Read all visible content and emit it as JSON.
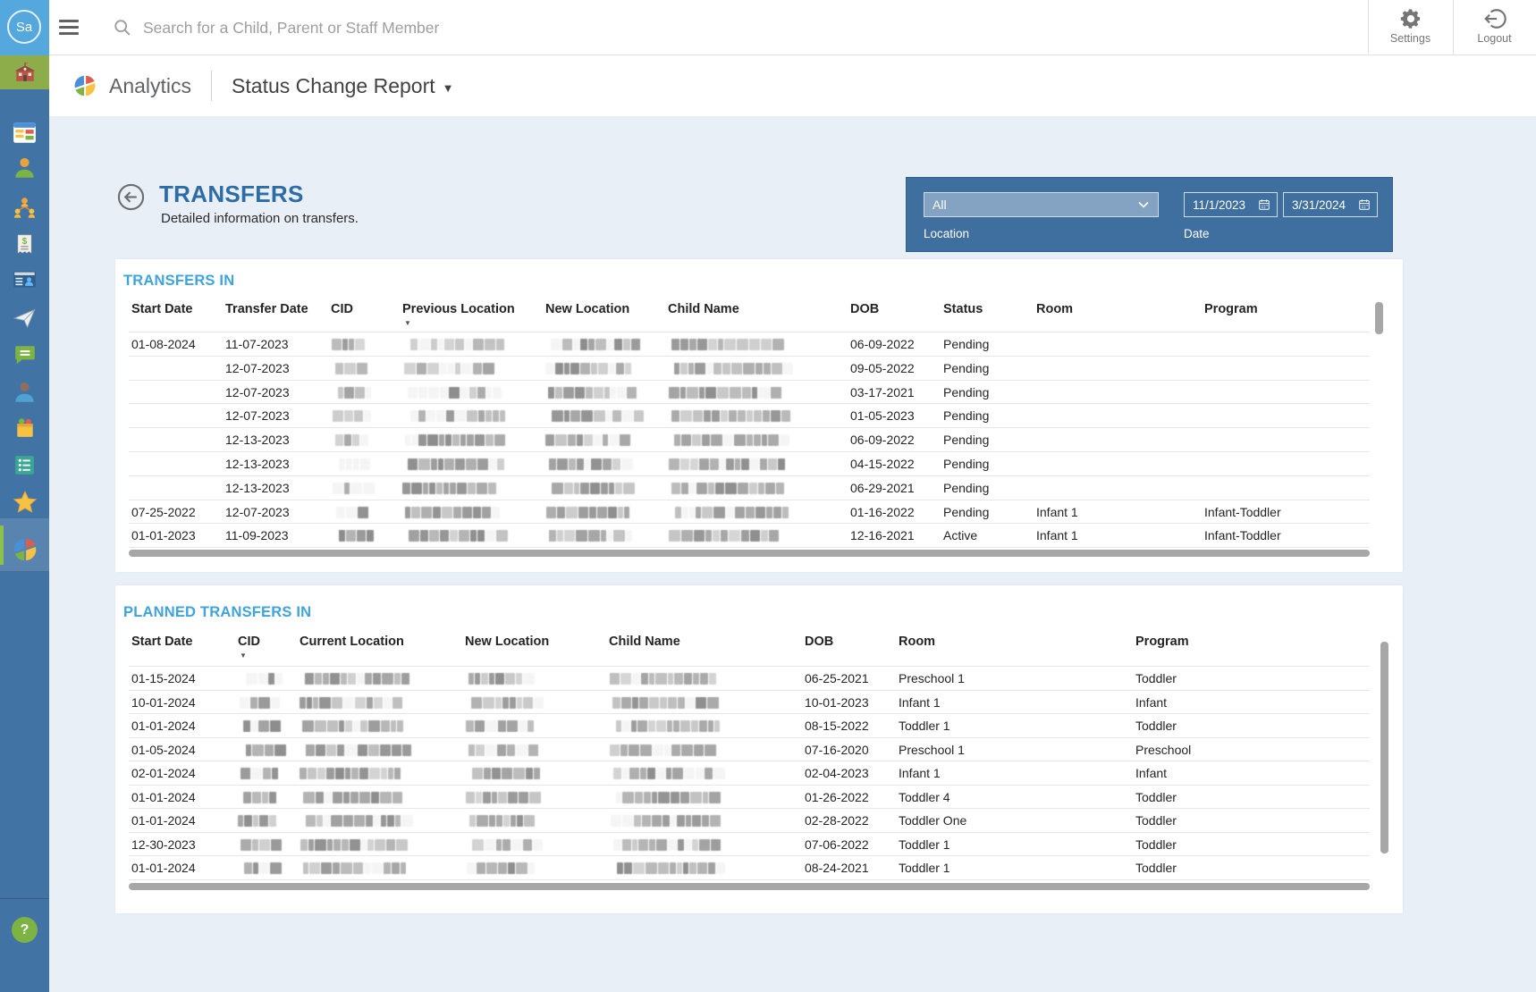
{
  "topbar": {
    "avatar_text": "Sa",
    "search_placeholder": "Search for a Child, Parent or Staff Member",
    "settings_label": "Settings",
    "logout_label": "Logout"
  },
  "header": {
    "app_section": "Analytics",
    "report_title": "Status Change Report",
    "caret": "▼"
  },
  "sidebar": {
    "items": [
      "school",
      "dashboard",
      "staff",
      "family-tree",
      "billing",
      "contact-card",
      "send-message",
      "chat",
      "parent",
      "meals",
      "checklist",
      "favorites",
      "analytics"
    ],
    "help_label": "?"
  },
  "page": {
    "title": "TRANSFERS",
    "subtitle": "Detailed information on transfers."
  },
  "filters": {
    "location": {
      "label": "Location",
      "value": "All"
    },
    "date": {
      "label": "Date",
      "start": "11/1/2023",
      "end": "3/31/2024"
    }
  },
  "tables": {
    "transfers_in": {
      "title": "TRANSFERS IN",
      "sort_indicator": "▼",
      "columns": [
        "Start Date",
        "Transfer Date",
        "CID",
        "Previous Location",
        "New Location",
        "Child Name",
        "DOB",
        "Status",
        "Room",
        "Program"
      ],
      "sort_column": "Previous Location",
      "rows": [
        [
          "01-08-2024",
          "11-07-2023",
          null,
          null,
          null,
          null,
          "06-09-2022",
          "Pending",
          "",
          ""
        ],
        [
          "",
          "12-07-2023",
          null,
          null,
          null,
          null,
          "09-05-2022",
          "Pending",
          "",
          ""
        ],
        [
          "",
          "12-07-2023",
          null,
          null,
          null,
          null,
          "03-17-2021",
          "Pending",
          "",
          ""
        ],
        [
          "",
          "12-07-2023",
          null,
          null,
          null,
          null,
          "01-05-2023",
          "Pending",
          "",
          ""
        ],
        [
          "",
          "12-13-2023",
          null,
          null,
          null,
          null,
          "06-09-2022",
          "Pending",
          "",
          ""
        ],
        [
          "",
          "12-13-2023",
          null,
          null,
          null,
          null,
          "04-15-2022",
          "Pending",
          "",
          ""
        ],
        [
          "",
          "12-13-2023",
          null,
          null,
          null,
          null,
          "06-29-2021",
          "Pending",
          "",
          ""
        ],
        [
          "07-25-2022",
          "12-07-2023",
          null,
          null,
          null,
          null,
          "01-16-2022",
          "Pending",
          "Infant 1",
          "Infant-Toddler"
        ],
        [
          "01-01-2023",
          "11-09-2023",
          null,
          null,
          null,
          null,
          "12-16-2021",
          "Active",
          "Infant 1",
          "Infant-Toddler"
        ]
      ]
    },
    "planned_transfers_in": {
      "title": "PLANNED TRANSFERS IN",
      "sort_indicator": "▼",
      "columns": [
        "Start Date",
        "CID",
        "Current Location",
        "New Location",
        "Child Name",
        "DOB",
        "Room",
        "Program"
      ],
      "sort_column": "CID",
      "rows": [
        [
          "01-15-2024",
          null,
          null,
          null,
          null,
          "06-25-2021",
          "Preschool 1",
          "Toddler"
        ],
        [
          "10-01-2024",
          null,
          null,
          null,
          null,
          "10-01-2023",
          "Infant 1",
          "Infant"
        ],
        [
          "01-01-2024",
          null,
          null,
          null,
          null,
          "08-15-2022",
          "Toddler 1",
          "Toddler"
        ],
        [
          "01-05-2024",
          null,
          null,
          null,
          null,
          "07-16-2020",
          "Preschool 1",
          "Preschool"
        ],
        [
          "02-01-2024",
          null,
          null,
          null,
          null,
          "02-04-2023",
          "Infant 1",
          "Infant"
        ],
        [
          "01-01-2024",
          null,
          null,
          null,
          null,
          "01-26-2022",
          "Toddler 4",
          "Toddler"
        ],
        [
          "01-01-2024",
          null,
          null,
          null,
          null,
          "02-28-2022",
          "Toddler One",
          "Toddler"
        ],
        [
          "12-30-2023",
          null,
          null,
          null,
          null,
          "07-06-2022",
          "Toddler 1",
          "Toddler"
        ],
        [
          "01-01-2024",
          null,
          null,
          null,
          null,
          "08-24-2021",
          "Toddler 1",
          "Toddler"
        ]
      ]
    }
  },
  "colors": {
    "sidebar": "#4273a5",
    "avatar_tile": "#55a8dd",
    "org_tile_green": "#8cad49",
    "active_indicator_green": "#8bc34a",
    "filter_panel": "#3f6f9f",
    "page_title_blue": "#2d6ca5",
    "section_title_blue": "#3fa3dc",
    "content_bg": "#e9eff7"
  }
}
